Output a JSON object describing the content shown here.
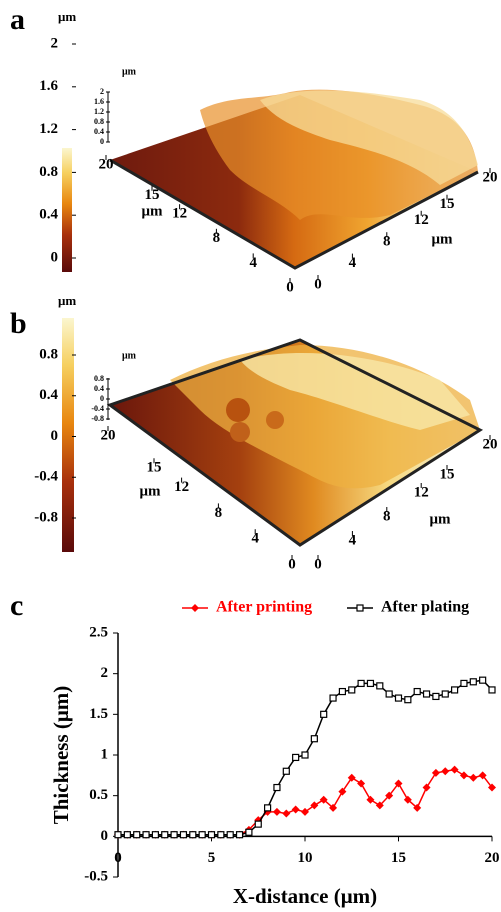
{
  "chart_data": [
    {
      "type": "surface",
      "panel_label": "a",
      "colorbar_unit": "μm",
      "clim": [
        0,
        2
      ],
      "colorbar_ticks": [
        0,
        0.4,
        0.8,
        1.2,
        1.6,
        2
      ],
      "z_unit": "μm",
      "zlim": [
        0,
        2
      ],
      "zticks": [
        0,
        0.4,
        0.8,
        1.2,
        1.6,
        2
      ],
      "xlim": [
        0,
        20
      ],
      "xticks": [
        0,
        4,
        8,
        12,
        15,
        20
      ],
      "xlabel": "μm",
      "ylim": [
        0,
        20
      ],
      "yticks": [
        0,
        4,
        8,
        12,
        15,
        20
      ],
      "ylabel": "μm"
    },
    {
      "type": "surface",
      "panel_label": "b",
      "colorbar_unit": "μm",
      "clim": [
        -0.8,
        0.8
      ],
      "colorbar_ticks": [
        -0.8,
        -0.4,
        0,
        0.4,
        0.8
      ],
      "z_unit": "μm",
      "zlim": [
        -0.8,
        0.8
      ],
      "zticks": [
        -0.8,
        -0.4,
        0,
        0.4,
        0.8
      ],
      "xlim": [
        0,
        20
      ],
      "xticks": [
        0,
        4,
        8,
        12,
        15,
        20
      ],
      "xlabel": "μm",
      "ylim": [
        0,
        20
      ],
      "yticks": [
        0,
        4,
        8,
        12,
        15,
        20
      ],
      "ylabel": "μm"
    },
    {
      "type": "line",
      "panel_label": "c",
      "xlabel": "X-distance (μm)",
      "ylabel": "Thickness (μm)",
      "xlim": [
        0,
        20
      ],
      "xticks": [
        0,
        5,
        10,
        15,
        20
      ],
      "ylim": [
        -0.5,
        2.5
      ],
      "yticks": [
        -0.5,
        0,
        0.5,
        1,
        1.5,
        2,
        2.5
      ],
      "x": [
        0,
        0.5,
        1,
        1.5,
        2,
        2.5,
        3,
        3.5,
        4,
        4.5,
        5,
        5.5,
        6,
        6.5,
        7,
        7.5,
        8,
        8.5,
        9,
        9.5,
        10,
        10.5,
        11,
        11.5,
        12,
        12.5,
        13,
        13.5,
        14,
        14.5,
        15,
        15.5,
        16,
        16.5,
        17,
        17.5,
        18,
        18.5,
        19,
        19.5,
        20
      ],
      "series": [
        {
          "name": "After printing",
          "color": "#ff0000",
          "marker": "diamond",
          "values": [
            0.02,
            0.02,
            0.02,
            0.02,
            0.02,
            0.02,
            0.02,
            0.02,
            0.02,
            0.02,
            0.02,
            0.02,
            0.02,
            0.02,
            0.08,
            0.2,
            0.3,
            0.3,
            0.28,
            0.33,
            0.3,
            0.38,
            0.45,
            0.35,
            0.55,
            0.72,
            0.65,
            0.45,
            0.38,
            0.5,
            0.65,
            0.45,
            0.35,
            0.6,
            0.78,
            0.8,
            0.82,
            0.75,
            0.72,
            0.75,
            0.6
          ]
        },
        {
          "name": "After plating",
          "color": "#000000",
          "marker": "square",
          "values": [
            0.02,
            0.02,
            0.02,
            0.02,
            0.02,
            0.02,
            0.02,
            0.02,
            0.02,
            0.02,
            0.02,
            0.02,
            0.02,
            0.02,
            0.05,
            0.15,
            0.35,
            0.6,
            0.8,
            0.97,
            1.0,
            1.2,
            1.5,
            1.7,
            1.78,
            1.8,
            1.88,
            1.88,
            1.85,
            1.75,
            1.7,
            1.68,
            1.78,
            1.75,
            1.72,
            1.75,
            1.8,
            1.88,
            1.9,
            1.92,
            1.8
          ]
        }
      ]
    }
  ]
}
